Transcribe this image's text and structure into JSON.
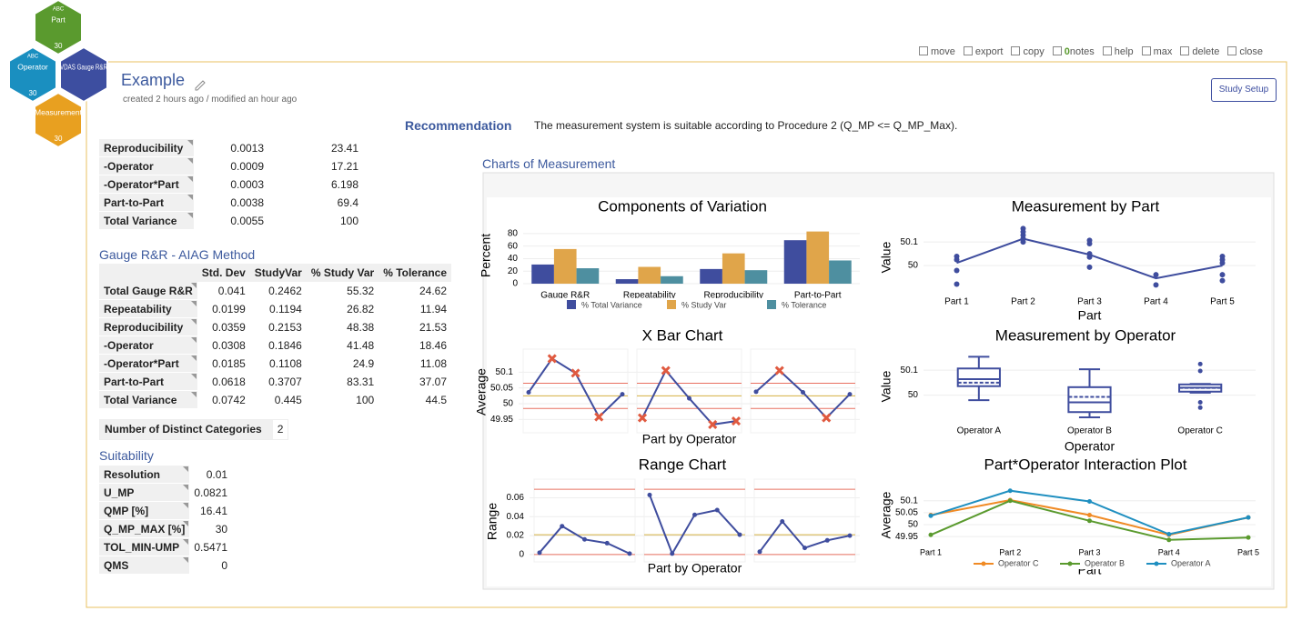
{
  "hexagons": [
    {
      "badge": "ABC",
      "label": "Part",
      "count": 30
    },
    {
      "badge": "ABC",
      "label": "Operator",
      "count": 30
    },
    {
      "label": "VDAS Gauge R&R"
    },
    {
      "label": "Measurement",
      "count": 30
    }
  ],
  "toolbar": {
    "items": [
      "move",
      "export",
      "copy",
      "notes",
      "help",
      "max",
      "delete",
      "close"
    ],
    "notes_count": 0
  },
  "header": {
    "title": "Example",
    "meta": "created 2 hours ago / modified an hour ago",
    "button": "Study Setup"
  },
  "recommendation": {
    "label": "Recommendation",
    "text": "The measurement system is suitable according to Procedure 2 (Q_MP <= Q_MP_Max)."
  },
  "variance_table": {
    "rows": [
      [
        "Reproducibility",
        "0.0013",
        "23.41"
      ],
      [
        "-Operator",
        "0.0009",
        "17.21"
      ],
      [
        "-Operator*Part",
        "0.0003",
        "6.198"
      ],
      [
        "Part-to-Part",
        "0.0038",
        "69.4"
      ],
      [
        "Total Variance",
        "0.0055",
        "100"
      ]
    ]
  },
  "aiag_table": {
    "title": "Gauge R&R - AIAG Method",
    "columns": [
      "Std. Dev",
      "StudyVar",
      "% Study Var",
      "% Tolerance"
    ],
    "rows": [
      [
        "Total Gauge R&R",
        "0.041",
        "0.2462",
        "55.32",
        "24.62"
      ],
      [
        "Repeatability",
        "0.0199",
        "0.1194",
        "26.82",
        "11.94"
      ],
      [
        "Reproducibility",
        "0.0359",
        "0.2153",
        "48.38",
        "21.53"
      ],
      [
        "-Operator",
        "0.0308",
        "0.1846",
        "41.48",
        "18.46"
      ],
      [
        "-Operator*Part",
        "0.0185",
        "0.1108",
        "24.9",
        "11.08"
      ],
      [
        "Part-to-Part",
        "0.0618",
        "0.3707",
        "83.31",
        "37.07"
      ],
      [
        "Total Variance",
        "0.0742",
        "0.445",
        "100",
        "44.5"
      ]
    ]
  },
  "ndc": {
    "label": "Number of Distinct Categories",
    "value": "2"
  },
  "suitability": {
    "title": "Suitability",
    "rows": [
      [
        "Resolution",
        "0.01"
      ],
      [
        "U_MP",
        "0.0821"
      ],
      [
        "QMP [%]",
        "16.41"
      ],
      [
        "Q_MP_MAX [%]",
        "30"
      ],
      [
        "TOL_MIN-UMP",
        "0.5471"
      ],
      [
        "QMS",
        "0"
      ]
    ]
  },
  "charts_title": "Charts of Measurement",
  "chart_data": [
    {
      "type": "bar",
      "title": "Components of Variation",
      "ylabel": "Percent",
      "categories": [
        "Gauge R&R",
        "Repeatability",
        "Reproducibility",
        "Part-to-Part"
      ],
      "series": [
        {
          "name": "% Total Variance",
          "color": "#3f4d9e",
          "values": [
            30.6,
            7.19,
            23.41,
            69.4
          ]
        },
        {
          "name": "% Study Var",
          "color": "#e0a54a",
          "values": [
            55.32,
            26.82,
            48.38,
            83.31
          ]
        },
        {
          "name": "% Tolerance",
          "color": "#4e8fa0",
          "values": [
            24.62,
            11.94,
            21.53,
            37.07
          ]
        }
      ],
      "ylim": [
        0,
        90
      ],
      "yticks": [
        0,
        20,
        40,
        60,
        80
      ],
      "grid": true
    },
    {
      "type": "line",
      "title": "Measurement by Part",
      "ylabel": "Value",
      "xlabel": "Part",
      "categories": [
        "Part 1",
        "Part 2",
        "Part 3",
        "Part 4",
        "Part 5"
      ],
      "values": [
        50.011,
        50.114,
        50.046,
        49.946,
        50.0
      ],
      "points": [
        [
          50.039,
          50.025,
          49.979,
          49.921
        ],
        [
          50.157,
          50.143,
          50.129,
          50.114,
          50.1
        ],
        [
          50.107,
          50.093,
          50.05,
          50.036,
          49.993
        ],
        [
          49.961,
          49.918
        ],
        [
          50.039,
          50.025,
          50.011,
          49.961,
          49.936
        ]
      ],
      "color": "#3f4d9e",
      "ylim": [
        49.9,
        50.17
      ],
      "yticks": [
        50,
        50.1
      ],
      "grid": true
    },
    {
      "type": "box",
      "title": "Measurement by Operator",
      "ylabel": "Value",
      "xlabel": "Operator",
      "categories": [
        "Operator A",
        "Operator B",
        "Operator C"
      ],
      "boxes": [
        {
          "low": 49.98,
          "q1": 50.036,
          "median": 50.064,
          "q3": 50.107,
          "high": 50.154,
          "mean": 50.05
        },
        {
          "low": 49.911,
          "q1": 49.932,
          "median": 49.971,
          "q3": 50.032,
          "high": 50.104,
          "mean": 49.993
        },
        {
          "low": 50.01,
          "q1": 50.014,
          "median": 50.03,
          "q3": 50.043,
          "high": 50.045,
          "mean": 50.029
        }
      ],
      "outliers": [
        [],
        [],
        [
          50.125,
          50.097,
          49.971,
          49.95
        ]
      ],
      "color": "#3f4d9e",
      "ylim": [
        49.9,
        50.17
      ],
      "yticks": [
        50,
        50.1
      ],
      "grid": true
    },
    {
      "type": "control",
      "title": "X Bar Chart",
      "ylabel": "Average",
      "xlabel": "Part by Operator",
      "panels": [
        [
          50.036,
          50.143,
          50.097,
          49.958,
          50.03
        ],
        [
          49.955,
          50.105,
          50.017,
          49.934,
          49.945
        ],
        [
          50.038,
          50.105,
          50.036,
          49.955,
          50.03
        ]
      ],
      "ucl": 50.065,
      "center": 50.025,
      "lcl": 49.985,
      "color": "#3f4d9e",
      "ylim": [
        49.925,
        50.15
      ],
      "yticks": [
        49.95,
        50,
        50.05,
        50.1
      ],
      "grid": true
    },
    {
      "type": "control",
      "title": "Range Chart",
      "ylabel": "Range",
      "xlabel": "Part by Operator",
      "panels": [
        [
          0.002,
          0.03,
          0.016,
          0.012,
          0.001
        ],
        [
          0.063,
          0.001,
          0.042,
          0.047,
          0.021
        ],
        [
          0.003,
          0.035,
          0.007,
          0.015,
          0.02
        ]
      ],
      "ucl": 0.069,
      "center": 0.021,
      "lcl": 0,
      "color": "#3f4d9e",
      "ylim": [
        -0.002,
        0.072
      ],
      "yticks": [
        0,
        0.02,
        0.04,
        0.06
      ],
      "grid": true
    },
    {
      "type": "multiline",
      "title": "Part*Operator Interaction Plot",
      "ylabel": "Average",
      "xlabel": "Part",
      "categories": [
        "Part 1",
        "Part 2",
        "Part 3",
        "Part 4",
        "Part 5"
      ],
      "series": [
        {
          "name": "Operator C",
          "color": "#f08a24",
          "values": [
            50.04,
            50.103,
            50.04,
            49.957,
            50.03
          ]
        },
        {
          "name": "Operator B",
          "color": "#5a9a2e",
          "values": [
            49.957,
            50.1,
            50.016,
            49.936,
            49.946
          ]
        },
        {
          "name": "Operator A",
          "color": "#1f8fc0",
          "values": [
            50.037,
            50.142,
            50.097,
            49.96,
            50.03
          ]
        }
      ],
      "ylim": [
        49.92,
        50.16
      ],
      "yticks": [
        49.95,
        50,
        50.05,
        50.1
      ],
      "grid": true
    }
  ]
}
